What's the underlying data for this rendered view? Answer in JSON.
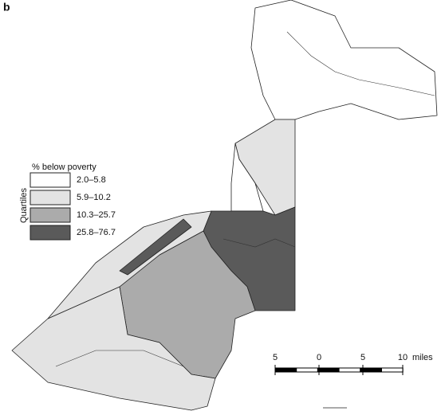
{
  "panel_label": "b",
  "legend": {
    "title": "% below poverty",
    "axis_label": "Quartiles",
    "items": [
      {
        "label": "2.0–5.8",
        "color": "#ffffff"
      },
      {
        "label": "5.9–10.2",
        "color": "#e3e3e3"
      },
      {
        "label": "10.3–25.7",
        "color": "#ababab"
      },
      {
        "label": "25.8–76.7",
        "color": "#5a5a5a"
      }
    ]
  },
  "scale_bar": {
    "ticks": [
      "5",
      "0",
      "5",
      "10"
    ],
    "unit": "miles"
  }
}
